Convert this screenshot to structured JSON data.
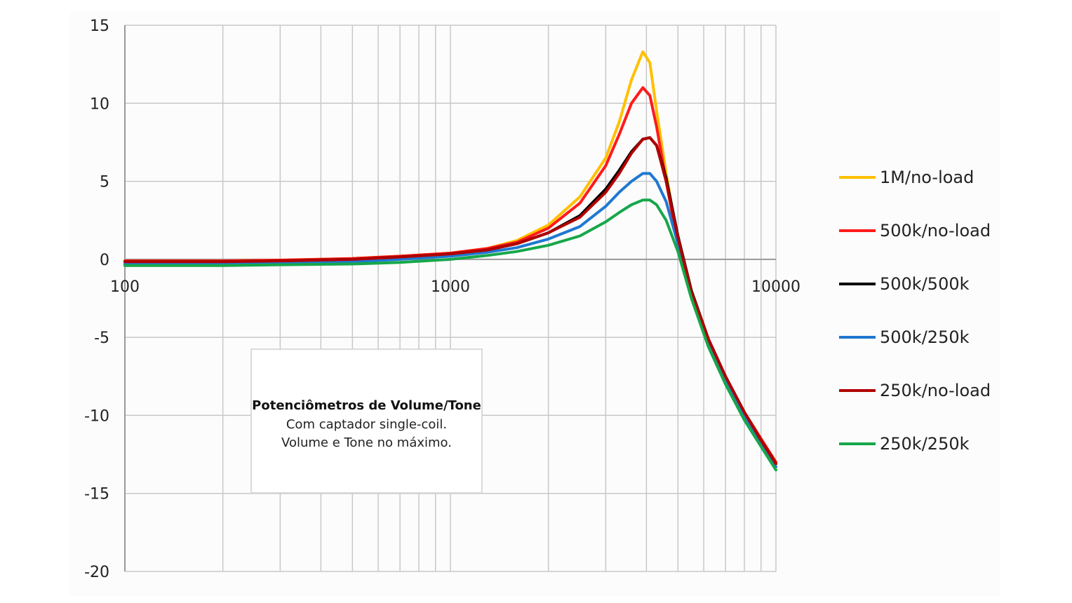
{
  "chart_data": {
    "type": "line",
    "title": "",
    "xlabel": "",
    "ylabel": "",
    "x_scale": "log",
    "xlim": [
      100,
      10000
    ],
    "ylim": [
      -20,
      15
    ],
    "grid": true,
    "legend_position": "right",
    "x_tick_labels": [
      "100",
      "1000",
      "10000"
    ],
    "y_ticks": [
      15,
      10,
      5,
      0,
      -5,
      -10,
      -15,
      -20
    ],
    "y_tick_labels": [
      "15",
      "10",
      "5",
      "0",
      "-5",
      "-10",
      "-15",
      "-20"
    ],
    "x": [
      100,
      200,
      300,
      500,
      700,
      1000,
      1300,
      1600,
      2000,
      2500,
      3000,
      3300,
      3600,
      3900,
      4100,
      4300,
      4600,
      5000,
      5500,
      6200,
      7000,
      8000,
      9000,
      10000
    ],
    "series": [
      {
        "name": "1M/no-load",
        "color": "#FFC000",
        "values": [
          -0.1,
          -0.1,
          -0.05,
          0.05,
          0.2,
          0.4,
          0.7,
          1.2,
          2.2,
          4.0,
          6.5,
          8.8,
          11.5,
          13.3,
          12.6,
          9.5,
          5.5,
          1.2,
          -2.2,
          -5.2,
          -7.5,
          -9.8,
          -11.5,
          -13.0
        ]
      },
      {
        "name": "500k/no-load",
        "color": "#FF1A1A",
        "values": [
          -0.1,
          -0.1,
          -0.05,
          0.05,
          0.2,
          0.4,
          0.7,
          1.1,
          2.0,
          3.6,
          6.0,
          8.0,
          10.0,
          11.0,
          10.5,
          8.5,
          5.0,
          1.0,
          -2.3,
          -5.2,
          -7.5,
          -9.8,
          -11.5,
          -13.0
        ]
      },
      {
        "name": "500k/500k",
        "color": "#000000",
        "values": [
          -0.15,
          -0.15,
          -0.1,
          0.0,
          0.15,
          0.35,
          0.6,
          1.0,
          1.7,
          2.8,
          4.5,
          5.7,
          6.9,
          7.7,
          7.8,
          7.3,
          5.2,
          1.5,
          -2.0,
          -5.1,
          -7.5,
          -9.8,
          -11.6,
          -13.1
        ]
      },
      {
        "name": "500k/250k",
        "color": "#1F78D1",
        "values": [
          -0.3,
          -0.3,
          -0.25,
          -0.15,
          0.0,
          0.2,
          0.45,
          0.75,
          1.3,
          2.1,
          3.4,
          4.3,
          5.0,
          5.5,
          5.5,
          5.0,
          3.7,
          1.0,
          -2.2,
          -5.3,
          -7.8,
          -10.0,
          -11.8,
          -13.3
        ]
      },
      {
        "name": "250k/no-load",
        "color": "#B00000",
        "values": [
          -0.15,
          -0.15,
          -0.1,
          0.0,
          0.15,
          0.35,
          0.6,
          1.0,
          1.7,
          2.7,
          4.3,
          5.5,
          6.8,
          7.7,
          7.8,
          7.3,
          5.0,
          1.4,
          -2.1,
          -5.1,
          -7.5,
          -9.8,
          -11.6,
          -13.1
        ]
      },
      {
        "name": "250k/250k",
        "color": "#16A74A",
        "values": [
          -0.4,
          -0.4,
          -0.35,
          -0.3,
          -0.2,
          0.0,
          0.25,
          0.5,
          0.9,
          1.5,
          2.4,
          3.0,
          3.5,
          3.8,
          3.8,
          3.5,
          2.5,
          0.5,
          -2.5,
          -5.6,
          -8.0,
          -10.3,
          -12.0,
          -13.5
        ]
      }
    ],
    "annotation": {
      "title": "Potenciômetros de Volume/Tone",
      "lines": [
        "Com captador single-coil.",
        "Volume e Tone no máximo."
      ]
    }
  }
}
